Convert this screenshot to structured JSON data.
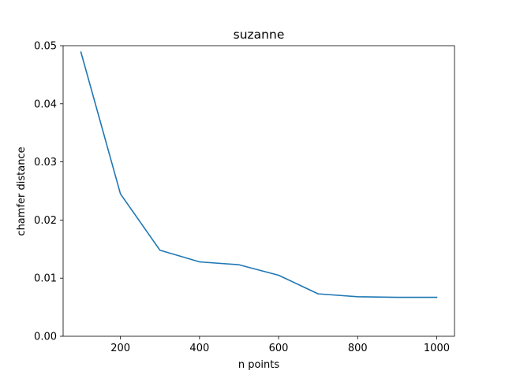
{
  "chart_data": {
    "type": "line",
    "title": "suzanne",
    "xlabel": "n points",
    "ylabel": "chamfer distance",
    "xlim": [
      55,
      1045
    ],
    "ylim": [
      0,
      0.05
    ],
    "xticks": [
      200,
      400,
      600,
      800,
      1000
    ],
    "xtick_labels": [
      "200",
      "400",
      "600",
      "800",
      "1000"
    ],
    "yticks": [
      0,
      0.01,
      0.02,
      0.03,
      0.04,
      0.05
    ],
    "ytick_labels": [
      "0.00",
      "0.01",
      "0.02",
      "0.03",
      "0.04",
      "0.05"
    ],
    "grid": false,
    "series": [
      {
        "color": "#1f77b4",
        "x": [
          100,
          200,
          300,
          400,
          500,
          600,
          700,
          800,
          900,
          1000
        ],
        "y": [
          0.0489,
          0.0245,
          0.0148,
          0.0128,
          0.0123,
          0.0105,
          0.0073,
          0.0068,
          0.0067,
          0.0067
        ]
      }
    ]
  }
}
